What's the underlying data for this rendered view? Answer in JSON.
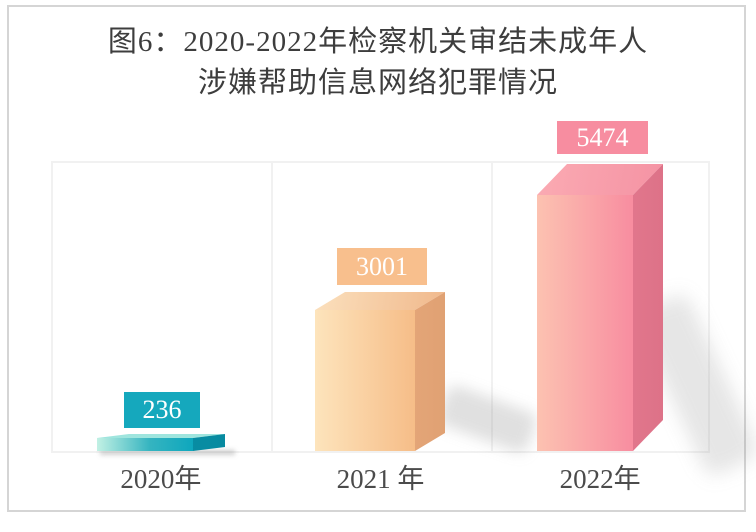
{
  "page": {
    "background": "#ffffff"
  },
  "frame": {
    "border_color": "#d5d5d5"
  },
  "title": {
    "line1": "图6：2020-2022年检察机关审结未成年人",
    "line2": "涉嫌帮助信息网络犯罪情况",
    "color": "#3d3d3d"
  },
  "chart_data": {
    "type": "bar",
    "title": "图6：2020-2022年检察机关审结未成年人涉嫌帮助信息网络犯罪情况",
    "categories": [
      "2020年",
      "2021 年",
      "2022年"
    ],
    "values": [
      236,
      3001,
      5474
    ],
    "xlabel": "",
    "ylabel": "",
    "ylim": [
      0,
      5800
    ],
    "grid": false,
    "legend": false,
    "style": "3d-box-bars",
    "plot_border_color": "#f1f1f1",
    "data_labels": [
      "236",
      "3001",
      "5474"
    ]
  },
  "bars": [
    {
      "category": "2020年",
      "value": "236",
      "label_bg": "#15a8bd",
      "front_from": "#c2f1e4",
      "front_to": "#0ea7bd",
      "side": "#0a90a6",
      "top": "#9fe5de"
    },
    {
      "category": "2021 年",
      "value": "3001",
      "label_bg": "#f8bf8d",
      "front_from": "#fde4bc",
      "front_to": "#f6bd88",
      "side": "#e5a678",
      "top": "#f8d8ae"
    },
    {
      "category": "2022年",
      "value": "5474",
      "label_bg": "#f78da0",
      "front_from": "#fcc2b1",
      "front_to": "#f88da0",
      "side": "#e57a8e",
      "top": "#f8a5b0"
    }
  ],
  "x_axis": {
    "label_color": "#4b4b4b"
  }
}
